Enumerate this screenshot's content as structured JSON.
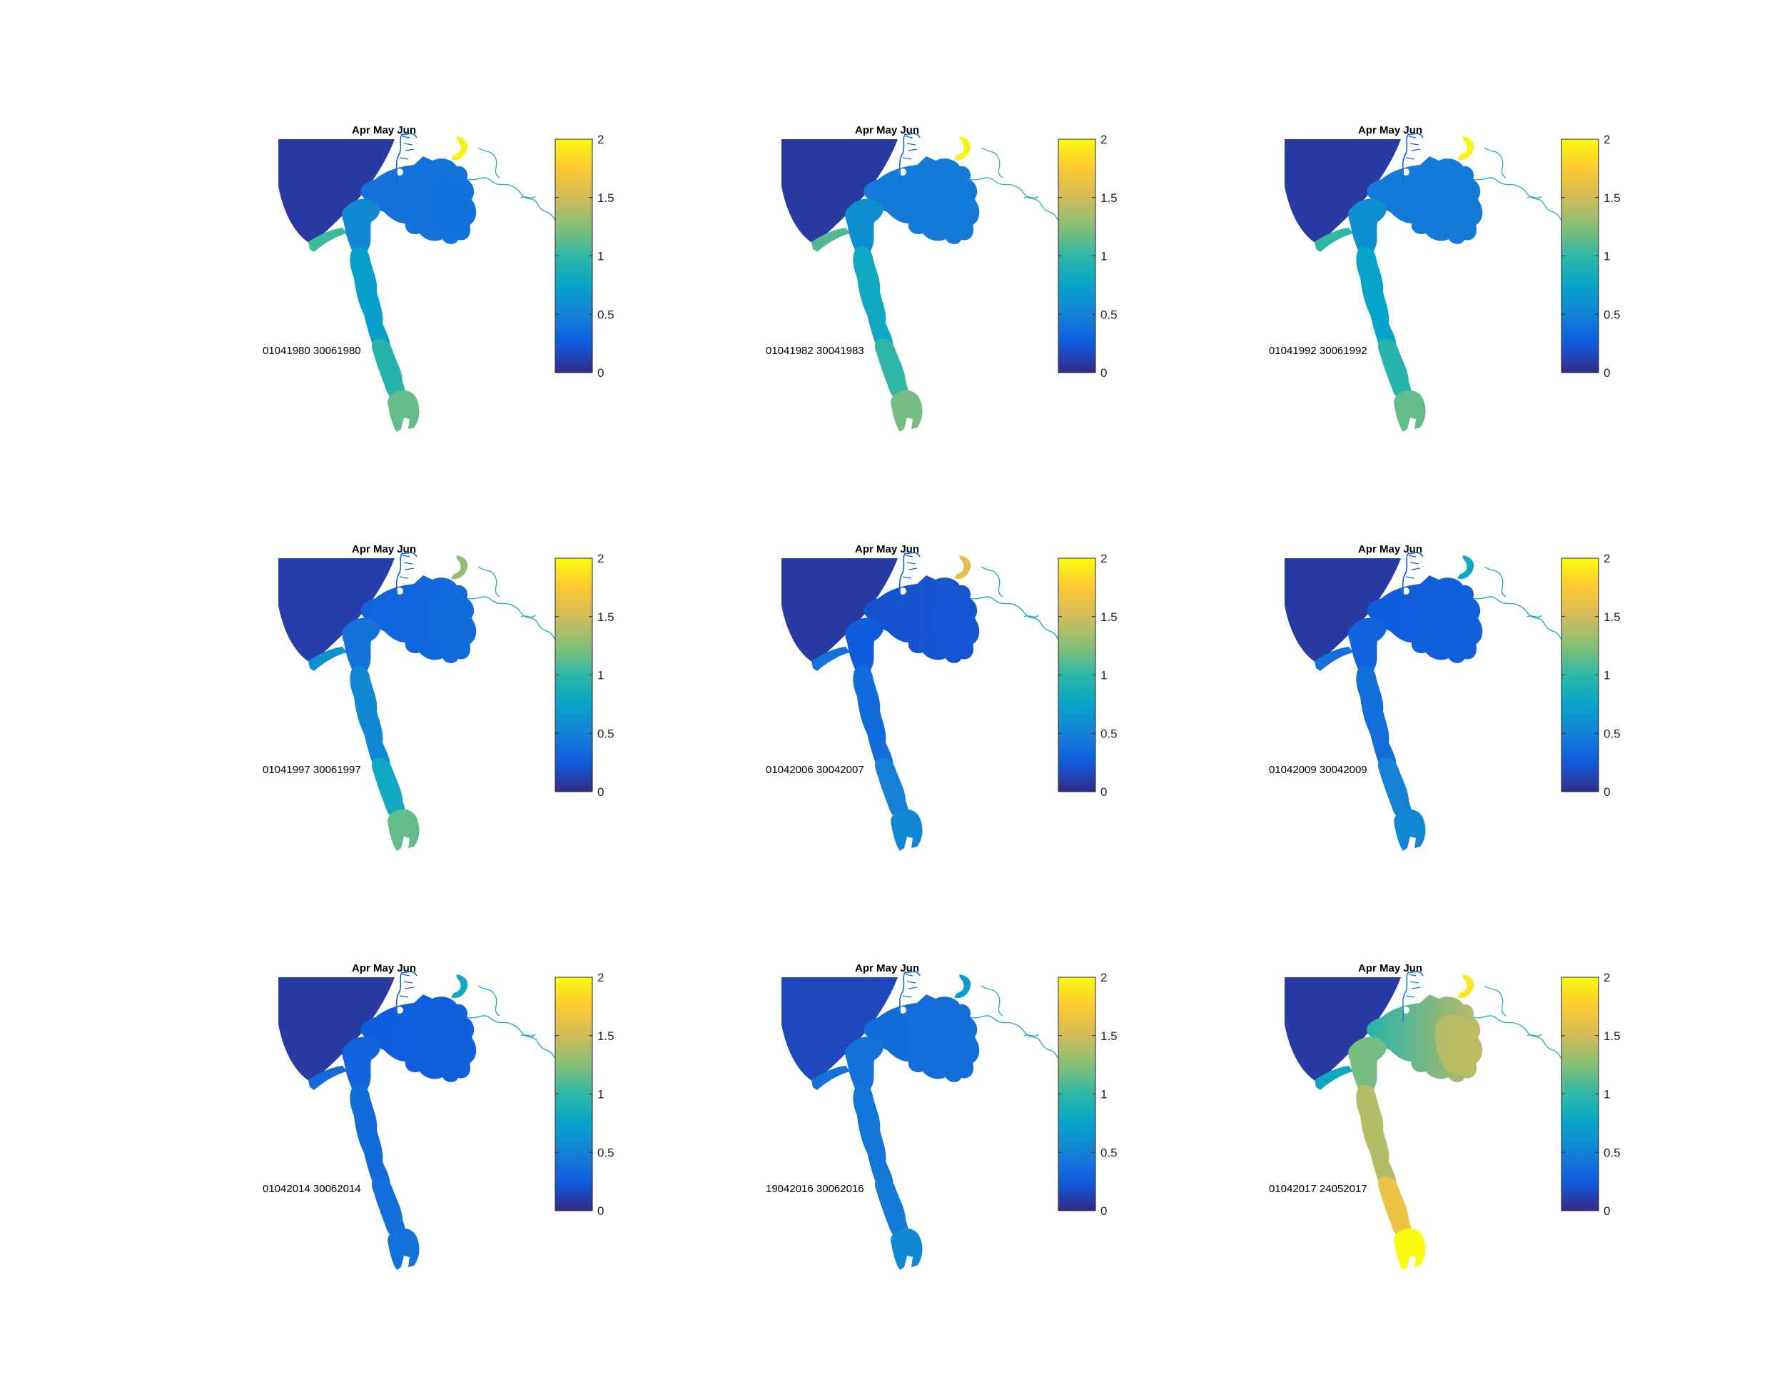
{
  "figure": {
    "colorbar": {
      "ticks": [
        "0",
        "0.5",
        "1",
        "1.5",
        "2"
      ],
      "range": [
        0,
        2
      ],
      "colormap": "parula",
      "stops": [
        "#352a87",
        "#0f5cdd",
        "#1481d6",
        "#06a4ca",
        "#2eb7a4",
        "#87bf77",
        "#d1bb59",
        "#fec832",
        "#f9fb0e"
      ]
    },
    "panels": [
      {
        "title": "Apr May Jun",
        "date_label": "01041980 30061980",
        "values": {
          "sea": 0.08,
          "lake": 0.4,
          "lake_east": 0.4,
          "channel_n": 0.55,
          "channel_mid": 0.72,
          "channel_s": 0.95,
          "tip": 1.15,
          "outlet": 1.05,
          "river_n": 0.3,
          "river_e": 0.9,
          "island": 1.95
        }
      },
      {
        "title": "Apr May Jun",
        "date_label": "01041982 30041983",
        "values": {
          "sea": 0.08,
          "lake": 0.45,
          "lake_east": 0.45,
          "channel_n": 0.6,
          "channel_mid": 0.8,
          "channel_s": 1.0,
          "tip": 1.2,
          "outlet": 1.1,
          "river_n": 0.35,
          "river_e": 1.0,
          "island": 1.95
        }
      },
      {
        "title": "Apr May Jun",
        "date_label": "01041992 30061992",
        "values": {
          "sea": 0.08,
          "lake": 0.45,
          "lake_east": 0.45,
          "channel_n": 0.6,
          "channel_mid": 0.75,
          "channel_s": 0.95,
          "tip": 1.15,
          "outlet": 1.0,
          "river_n": 0.3,
          "river_e": 0.9,
          "island": 1.95
        }
      },
      {
        "title": "Apr May Jun",
        "date_label": "01041997 30061997",
        "values": {
          "sea": 0.1,
          "lake": 0.3,
          "lake_east": 0.35,
          "channel_n": 0.4,
          "channel_mid": 0.55,
          "channel_s": 0.8,
          "tip": 1.15,
          "outlet": 0.6,
          "river_n": 0.3,
          "river_e": 0.9,
          "island": 1.3
        }
      },
      {
        "title": "Apr May Jun",
        "date_label": "01042006 30042007",
        "values": {
          "sea": 0.08,
          "lake": 0.2,
          "lake_east": 0.22,
          "channel_n": 0.25,
          "channel_mid": 0.35,
          "channel_s": 0.5,
          "tip": 0.55,
          "outlet": 0.4,
          "river_n": 0.25,
          "river_e": 0.8,
          "island": 1.6
        }
      },
      {
        "title": "Apr May Jun",
        "date_label": "01042009 30042009",
        "values": {
          "sea": 0.08,
          "lake": 0.25,
          "lake_east": 0.28,
          "channel_n": 0.3,
          "channel_mid": 0.38,
          "channel_s": 0.5,
          "tip": 0.55,
          "outlet": 0.4,
          "river_n": 0.25,
          "river_e": 0.8,
          "island": 0.8
        }
      },
      {
        "title": "Apr May Jun",
        "date_label": "01042014 30062014",
        "values": {
          "sea": 0.08,
          "lake": 0.25,
          "lake_east": 0.28,
          "channel_n": 0.3,
          "channel_mid": 0.35,
          "channel_s": 0.38,
          "tip": 0.4,
          "outlet": 0.35,
          "river_n": 0.25,
          "river_e": 0.8,
          "island": 0.8
        }
      },
      {
        "title": "Apr May Jun",
        "date_label": "19042016 30062016",
        "values": {
          "sea": 0.15,
          "lake": 0.35,
          "lake_east": 0.38,
          "channel_n": 0.4,
          "channel_mid": 0.42,
          "channel_s": 0.45,
          "tip": 0.55,
          "outlet": 0.4,
          "river_n": 0.35,
          "river_e": 0.85,
          "island": 0.7
        }
      },
      {
        "title": "Apr May Jun",
        "date_label": "01042017 24052017",
        "values": {
          "sea": 0.08,
          "lake": 0.95,
          "lake_east": 1.45,
          "channel_n": 1.2,
          "channel_mid": 1.4,
          "channel_s": 1.65,
          "tip": 2.0,
          "outlet": 0.8,
          "river_n": 0.5,
          "river_e": 0.9,
          "island": 1.9
        }
      }
    ]
  }
}
